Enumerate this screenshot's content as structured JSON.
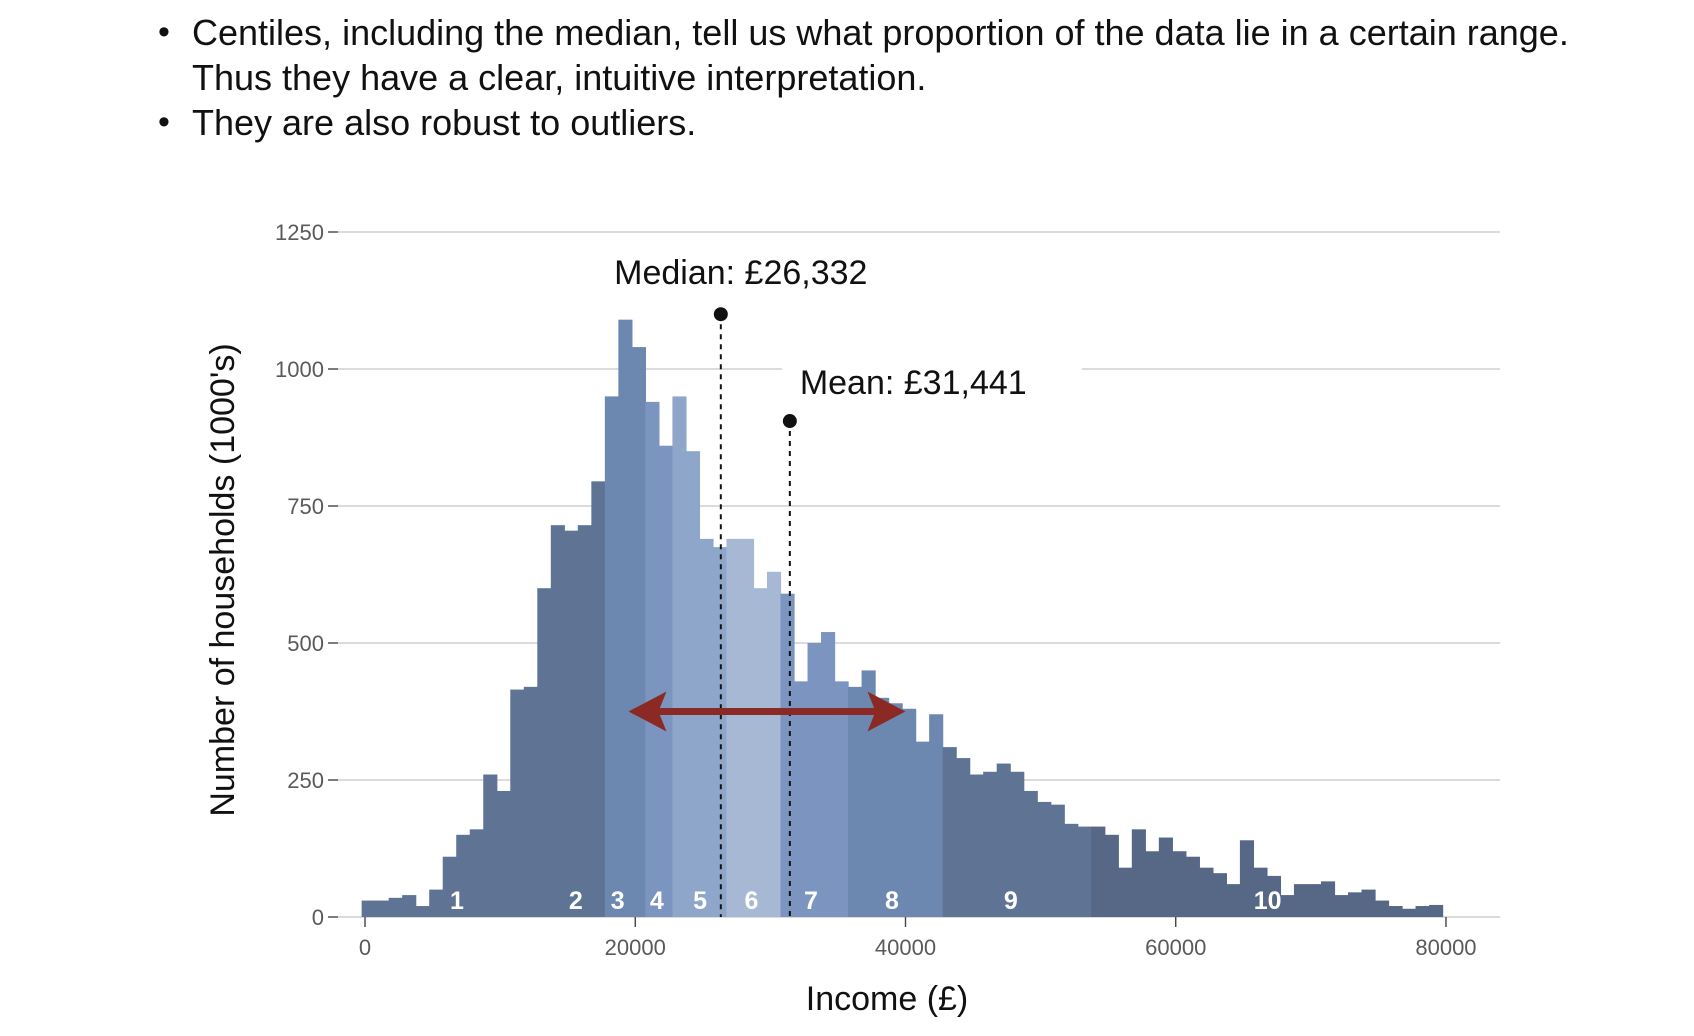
{
  "bullets": [
    {
      "text": "Centiles, including the median, tell us what proportion of the data lie in a certain range. Thus they have a clear, intuitive interpretation."
    },
    {
      "text": "They are also robust to outliers."
    }
  ],
  "chart_data": {
    "type": "bar",
    "xlabel": "Income (£)",
    "ylabel": "Number of households (1000's)",
    "xlim": [
      -2000,
      84000
    ],
    "ylim": [
      0,
      1250
    ],
    "x_ticks": [
      0,
      20000,
      40000,
      60000,
      80000
    ],
    "y_ticks": [
      0,
      250,
      500,
      750,
      1000,
      1250
    ],
    "grid": "horizontal",
    "bin_width": 1000,
    "bin_start": -250,
    "values": [
      30,
      30,
      35,
      40,
      20,
      50,
      110,
      150,
      160,
      260,
      230,
      415,
      420,
      600,
      715,
      705,
      715,
      795,
      950,
      1090,
      1040,
      940,
      860,
      950,
      850,
      690,
      675,
      690,
      690,
      600,
      630,
      590,
      430,
      500,
      520,
      430,
      420,
      450,
      400,
      390,
      380,
      320,
      370,
      310,
      290,
      260,
      265,
      280,
      265,
      230,
      210,
      205,
      170,
      165,
      165,
      150,
      90,
      160,
      120,
      145,
      120,
      110,
      90,
      80,
      60,
      140,
      90,
      75,
      40,
      60,
      60,
      65,
      40,
      45,
      50,
      30,
      20,
      15,
      20,
      22
    ],
    "deciles": [
      {
        "label": "1",
        "start": -250,
        "end": 13250,
        "color": "#5f7494",
        "x": 6800
      },
      {
        "label": "2",
        "start": 13250,
        "end": 17750,
        "color": "#5f7494",
        "x": 15600
      },
      {
        "label": "3",
        "start": 17750,
        "end": 20750,
        "color": "#6d88b0",
        "x": 18700
      },
      {
        "label": "4",
        "start": 20750,
        "end": 22750,
        "color": "#7b95c0",
        "x": 21600
      },
      {
        "label": "5",
        "start": 22750,
        "end": 26750,
        "color": "#8fa6cb",
        "x": 24800
      },
      {
        "label": "6",
        "start": 26750,
        "end": 30750,
        "color": "#a7b8d5",
        "x": 28600
      },
      {
        "label": "7",
        "start": 30750,
        "end": 35750,
        "color": "#7b95c0",
        "x": 33000
      },
      {
        "label": "8",
        "start": 35750,
        "end": 42750,
        "color": "#6d88b0",
        "x": 39000
      },
      {
        "label": "9",
        "start": 42750,
        "end": 53750,
        "color": "#5f7494",
        "x": 47800
      },
      {
        "label": "10",
        "start": 53750,
        "end": 79750,
        "color": "#566886",
        "x": 66800
      }
    ],
    "annotations": [
      {
        "text": "Median: £26,332",
        "x": 26332,
        "y_dot": 1100
      },
      {
        "text": "Mean: £31,441",
        "x": 31441,
        "y_dot": 905
      }
    ],
    "arrow": {
      "x_from": 19500,
      "x_to": 40000,
      "y": 375,
      "color": "#8b2a24"
    }
  }
}
